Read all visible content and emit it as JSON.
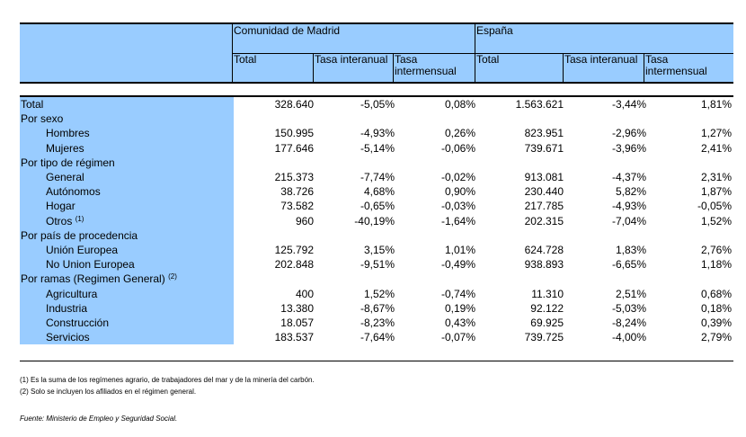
{
  "header": {
    "group1": "Comunidad de Madrid",
    "group2": "España",
    "cols": [
      "Total",
      "Tasa interanual",
      "Tasa intermensual",
      "Total",
      "Tasa interanual",
      "Tasa intermensual"
    ]
  },
  "rows": [
    {
      "label": "Total",
      "indent": false,
      "values": [
        "328.640",
        "-5,05%",
        "0,08%",
        "1.563.621",
        "-3,44%",
        "1,81%"
      ]
    },
    {
      "label": "Por sexo",
      "indent": false,
      "values": [
        "",
        "",
        "",
        "",
        "",
        ""
      ]
    },
    {
      "label": "Hombres",
      "indent": true,
      "values": [
        "150.995",
        "-4,93%",
        "0,26%",
        "823.951",
        "-2,96%",
        "1,27%"
      ]
    },
    {
      "label": "Mujeres",
      "indent": true,
      "values": [
        "177.646",
        "-5,14%",
        "-0,06%",
        "739.671",
        "-3,96%",
        "2,41%"
      ]
    },
    {
      "label": "Por tipo de régimen",
      "indent": false,
      "values": [
        "",
        "",
        "",
        "",
        "",
        ""
      ]
    },
    {
      "label": "General",
      "indent": true,
      "values": [
        "215.373",
        "-7,74%",
        "-0,02%",
        "913.081",
        "-4,37%",
        "2,31%"
      ]
    },
    {
      "label": "Autónomos",
      "indent": true,
      "values": [
        "38.726",
        "4,68%",
        "0,90%",
        "230.440",
        "5,82%",
        "1,87%"
      ]
    },
    {
      "label": "Hogar",
      "indent": true,
      "values": [
        "73.582",
        "-0,65%",
        "-0,03%",
        "217.785",
        "-4,93%",
        "-0,05%"
      ]
    },
    {
      "label": "Otros",
      "note": "(1)",
      "indent": true,
      "values": [
        "960",
        "-40,19%",
        "-1,64%",
        "202.315",
        "-7,04%",
        "1,52%"
      ]
    },
    {
      "label": "Por país de procedencia",
      "indent": false,
      "values": [
        "",
        "",
        "",
        "",
        "",
        ""
      ]
    },
    {
      "label": "Unión Europea",
      "indent": true,
      "values": [
        "125.792",
        "3,15%",
        "1,01%",
        "624.728",
        "1,83%",
        "2,76%"
      ]
    },
    {
      "label": "No Union Europea",
      "indent": true,
      "values": [
        "202.848",
        "-9,51%",
        "-0,49%",
        "938.893",
        "-6,65%",
        "1,18%"
      ]
    },
    {
      "label": "Por ramas (Regimen General)",
      "note": "(2)",
      "indent": false,
      "values": [
        "",
        "",
        "",
        "",
        "",
        ""
      ]
    },
    {
      "label": "Agricultura",
      "indent": true,
      "values": [
        "400",
        "1,52%",
        "-0,74%",
        "11.310",
        "2,51%",
        "0,68%"
      ]
    },
    {
      "label": "Industria",
      "indent": true,
      "values": [
        "13.380",
        "-8,67%",
        "0,19%",
        "92.122",
        "-5,03%",
        "0,18%"
      ]
    },
    {
      "label": "Construcción",
      "indent": true,
      "values": [
        "18.057",
        "-8,23%",
        "0,43%",
        "69.925",
        "-8,24%",
        "0,39%"
      ]
    },
    {
      "label": "Servicios",
      "indent": true,
      "values": [
        "183.537",
        "-7,64%",
        "-0,07%",
        "739.725",
        "-4,00%",
        "2,79%"
      ]
    }
  ],
  "footnotes": [
    "(1) Es la suma de los regímenes  agrario, de trabajadores del mar y de la minería del carbón.",
    "(2) Solo se incluyen los afiliados en el régimen general."
  ],
  "source": "Fuente: Ministerio de Empleo y Seguridad Social."
}
